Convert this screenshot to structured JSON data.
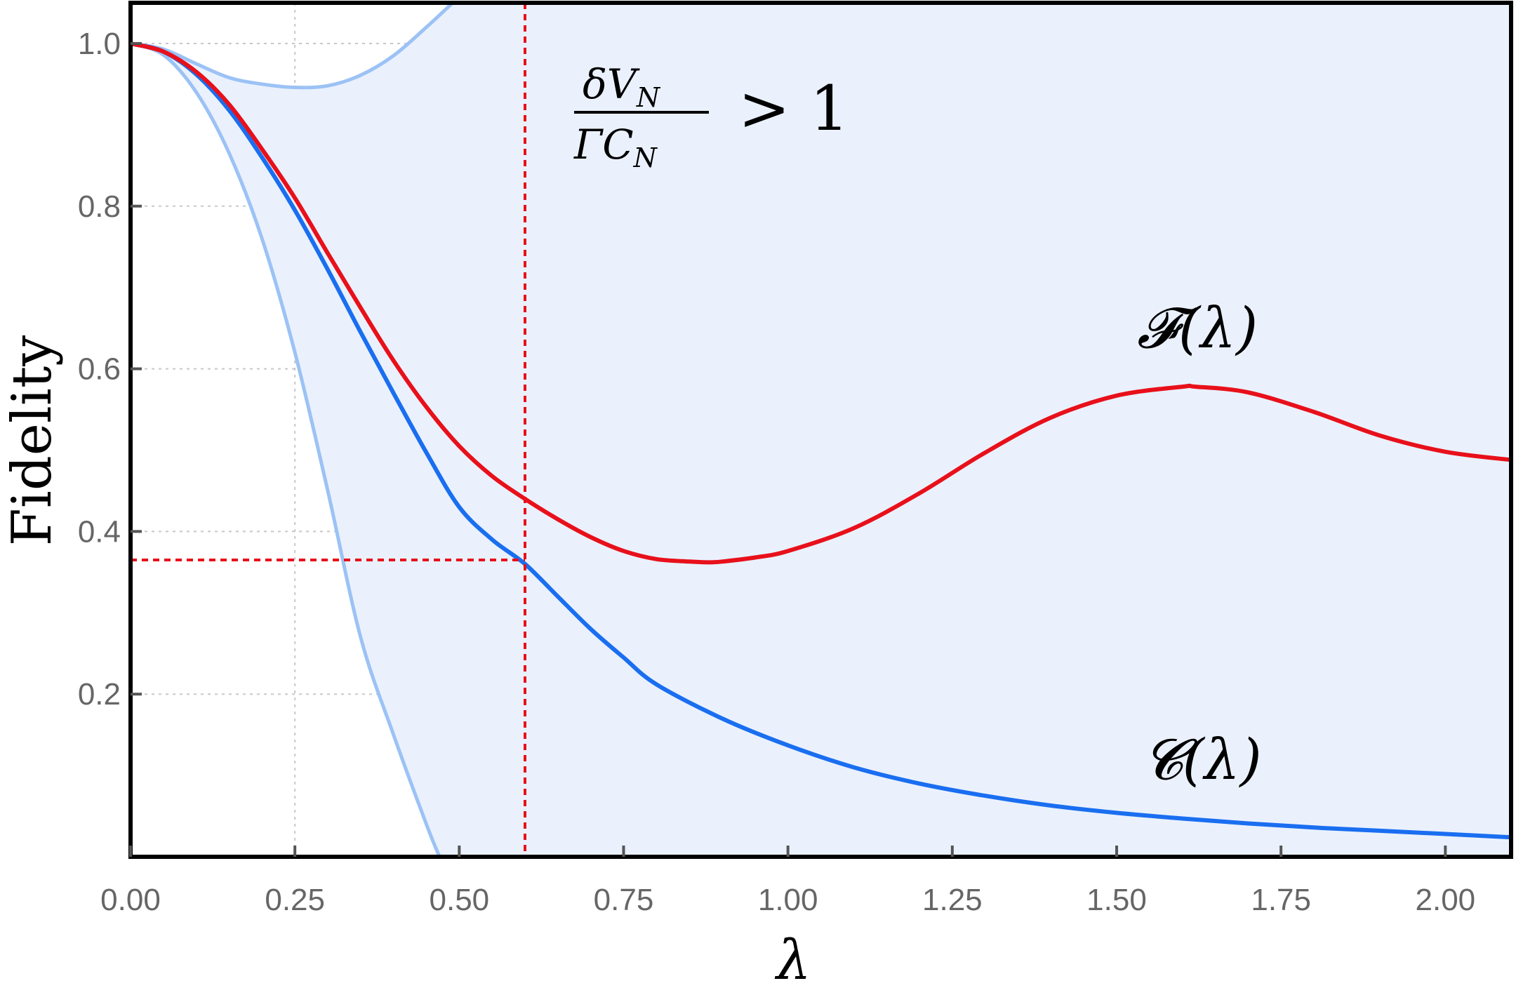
{
  "chart_data": {
    "type": "line",
    "xlabel": "λ",
    "ylabel": "Fidelity",
    "xlim": [
      0,
      2.1
    ],
    "ylim": [
      0,
      1.05
    ],
    "x_ticks": [
      "0.00",
      "0.25",
      "0.50",
      "0.75",
      "1.00",
      "1.25",
      "1.50",
      "1.75",
      "2.00"
    ],
    "y_ticks": [
      "0.2",
      "0.4",
      "0.6",
      "0.8",
      "1.0"
    ],
    "grid": true,
    "colors": {
      "F": "#e8101a",
      "C": "#1a6ef0",
      "bound": "#9cc2f5",
      "band": "#eaf1fd",
      "marker": "#e8101a",
      "grid": "#c8c8c8"
    },
    "series": [
      {
        "key": "F",
        "label_text": "𝓕(λ)",
        "x": [
          0,
          0.05,
          0.1,
          0.15,
          0.2,
          0.25,
          0.3,
          0.35,
          0.4,
          0.45,
          0.5,
          0.55,
          0.6,
          0.65,
          0.7,
          0.75,
          0.8,
          0.85,
          0.88,
          0.9,
          0.95,
          1.0,
          1.1,
          1.2,
          1.3,
          1.4,
          1.5,
          1.6,
          1.62,
          1.7,
          1.8,
          1.9,
          2.0,
          2.1
        ],
        "y": [
          1.0,
          0.99,
          0.965,
          0.925,
          0.87,
          0.81,
          0.742,
          0.675,
          0.61,
          0.553,
          0.505,
          0.468,
          0.44,
          0.415,
          0.393,
          0.376,
          0.366,
          0.363,
          0.362,
          0.363,
          0.368,
          0.376,
          0.404,
          0.447,
          0.497,
          0.54,
          0.567,
          0.578,
          0.578,
          0.571,
          0.547,
          0.518,
          0.498,
          0.488
        ]
      },
      {
        "key": "C",
        "label_text": "𝓒(λ)",
        "x": [
          0,
          0.05,
          0.1,
          0.15,
          0.2,
          0.25,
          0.3,
          0.35,
          0.4,
          0.45,
          0.5,
          0.55,
          0.6,
          0.65,
          0.7,
          0.75,
          0.8,
          0.9,
          1.0,
          1.1,
          1.2,
          1.3,
          1.4,
          1.5,
          1.6,
          1.7,
          1.8,
          1.9,
          2.0,
          2.1
        ],
        "y": [
          1.0,
          0.99,
          0.962,
          0.918,
          0.86,
          0.795,
          0.722,
          0.645,
          0.57,
          0.497,
          0.43,
          0.39,
          0.36,
          0.32,
          0.28,
          0.245,
          0.212,
          0.17,
          0.137,
          0.11,
          0.09,
          0.075,
          0.063,
          0.054,
          0.047,
          0.041,
          0.036,
          0.032,
          0.028,
          0.024
        ]
      },
      {
        "key": "upper_bound",
        "x": [
          0,
          0.05,
          0.1,
          0.15,
          0.2,
          0.25,
          0.3,
          0.35,
          0.4,
          0.45,
          0.49
        ],
        "y": [
          1.0,
          0.993,
          0.975,
          0.958,
          0.95,
          0.946,
          0.948,
          0.961,
          0.985,
          1.02,
          1.05
        ]
      },
      {
        "key": "lower_bound",
        "x": [
          0,
          0.05,
          0.1,
          0.15,
          0.2,
          0.25,
          0.3,
          0.35,
          0.4,
          0.45,
          0.47
        ],
        "y": [
          1.0,
          0.986,
          0.94,
          0.865,
          0.76,
          0.62,
          0.45,
          0.27,
          0.15,
          0.04,
          0.0
        ]
      }
    ],
    "markers": {
      "x": 0.6,
      "y": 0.365
    },
    "annotation": {
      "numerator": "δV",
      "numerator_sub": "N",
      "denominator": "ΓC",
      "denominator_sub": "N",
      "relation": "> 1"
    }
  }
}
